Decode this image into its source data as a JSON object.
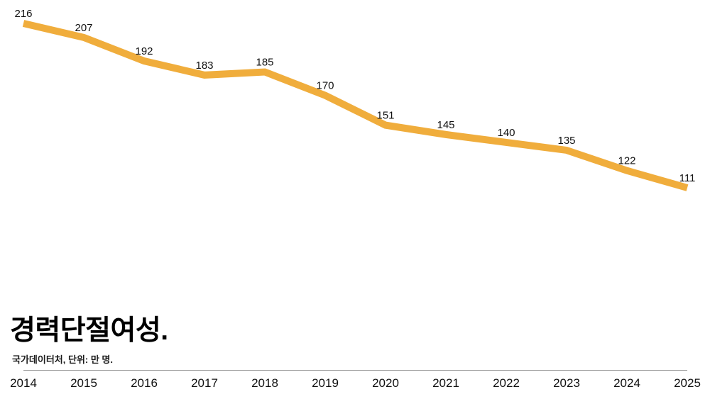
{
  "chart_data": {
    "type": "line",
    "title": "경력단절여성.",
    "source": "국가데이터처, 단위: 만 명.",
    "categories": [
      "2014",
      "2015",
      "2016",
      "2017",
      "2018",
      "2019",
      "2020",
      "2021",
      "2022",
      "2023",
      "2024",
      "2025"
    ],
    "values": [
      216,
      207,
      192,
      183,
      185,
      170,
      151,
      145,
      140,
      135,
      122,
      111
    ],
    "value_labels_shown": true,
    "line_color": "#F0AD3C",
    "data_label_color": "#111111",
    "tick_label_color": "#111111",
    "axis_line_color": "#9a9a9a",
    "background_color": "#ffffff",
    "ylim": [
      111,
      216
    ],
    "grid": false,
    "legend": "none"
  }
}
